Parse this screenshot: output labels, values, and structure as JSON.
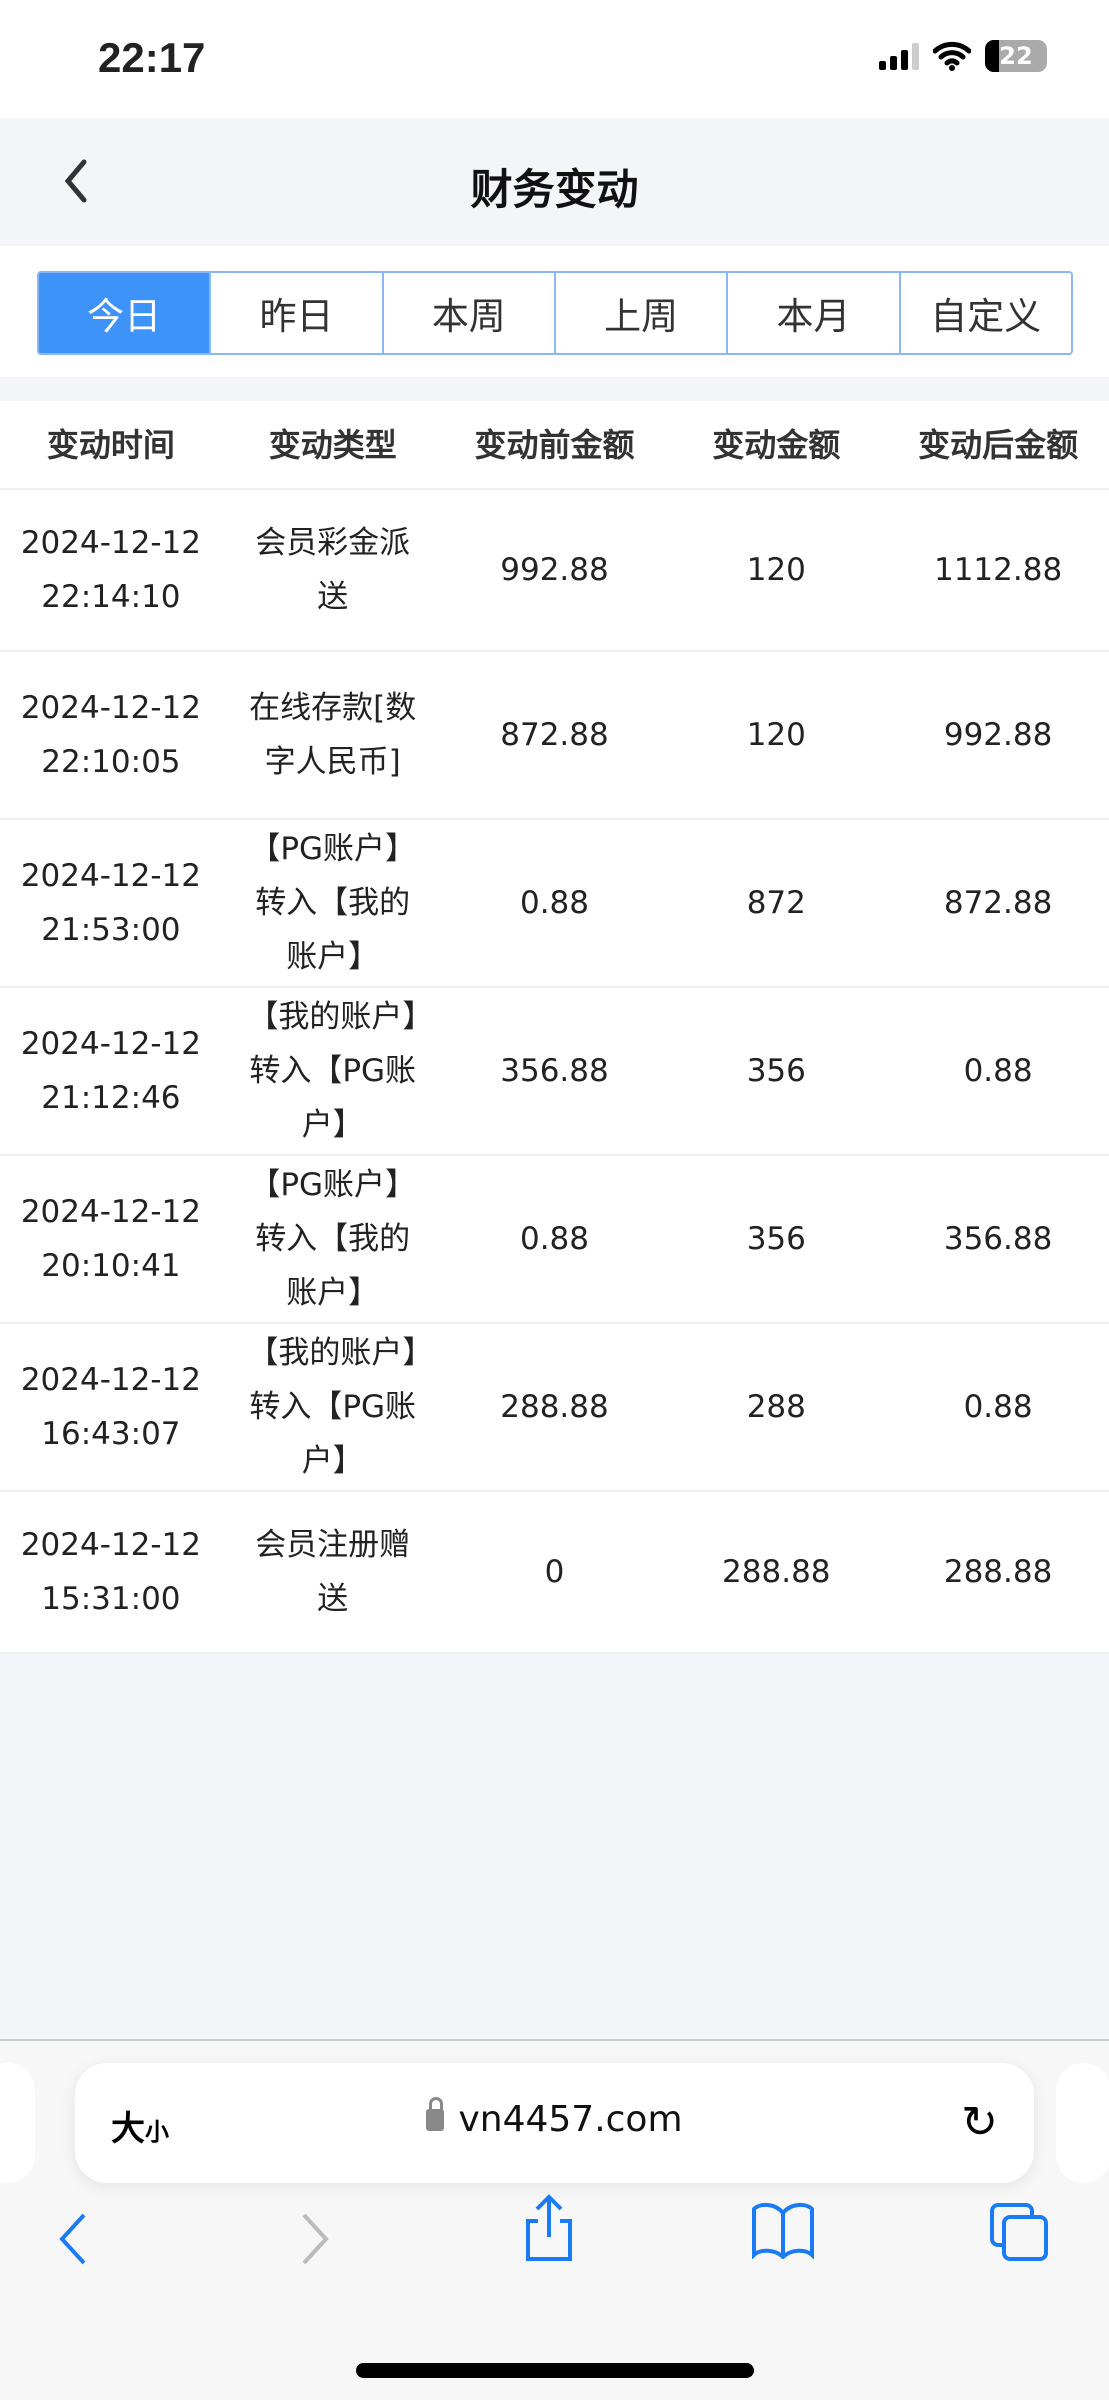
{
  "status_bar": {
    "time": "22:17",
    "battery": "22"
  },
  "nav": {
    "title": "财务变动"
  },
  "tabs": [
    {
      "label": "今日",
      "active": true
    },
    {
      "label": "昨日"
    },
    {
      "label": "本周"
    },
    {
      "label": "上周"
    },
    {
      "label": "本月"
    },
    {
      "label": "自定义"
    }
  ],
  "table": {
    "headers": [
      "变动时间",
      "变动类型",
      "变动前金额",
      "变动金额",
      "变动后金额"
    ],
    "rows": [
      {
        "date": "2024-12-12",
        "time": "22:14:10",
        "type": "会员彩金派送",
        "before": "992.88",
        "amount": "120",
        "after": "1112.88"
      },
      {
        "date": "2024-12-12",
        "time": "22:10:05",
        "type": "在线存款[数字人民币]",
        "before": "872.88",
        "amount": "120",
        "after": "992.88"
      },
      {
        "date": "2024-12-12",
        "time": "21:53:00",
        "type": "【PG账户】转入【我的账户】",
        "before": "0.88",
        "amount": "872",
        "after": "872.88"
      },
      {
        "date": "2024-12-12",
        "time": "21:12:46",
        "type": "【我的账户】转入【PG账户】",
        "before": "356.88",
        "amount": "356",
        "after": "0.88"
      },
      {
        "date": "2024-12-12",
        "time": "20:10:41",
        "type": "【PG账户】转入【我的账户】",
        "before": "0.88",
        "amount": "356",
        "after": "356.88"
      },
      {
        "date": "2024-12-12",
        "time": "16:43:07",
        "type": "【我的账户】转入【PG账户】",
        "before": "288.88",
        "amount": "288",
        "after": "0.88"
      },
      {
        "date": "2024-12-12",
        "time": "15:31:00",
        "type": "会员注册赠送",
        "before": "0",
        "amount": "288.88",
        "after": "288.88"
      }
    ]
  },
  "browser": {
    "text_size_big": "大",
    "text_size_small": "小",
    "domain": "vn4457.com"
  },
  "colors": {
    "accent": "#3d93f7",
    "toolbar_blue": "#1a7cf5"
  }
}
